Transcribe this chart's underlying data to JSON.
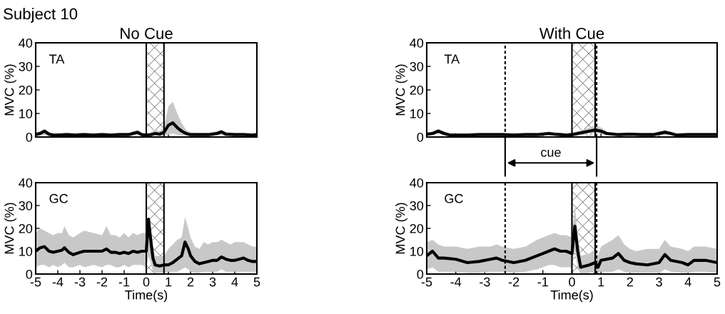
{
  "chart_data": [
    {
      "type": "line",
      "title": "No Cue",
      "ylabel": "MVC (%)",
      "annotations": [
        "TA",
        "Subject 10"
      ],
      "xlim": [
        -5,
        5
      ],
      "xticks": [
        -5,
        -4,
        -3,
        -2,
        -1,
        0,
        1,
        2,
        3,
        4,
        5
      ],
      "ylim": [
        0,
        40
      ],
      "yticks": [
        0,
        10,
        20,
        30,
        40
      ],
      "tick_labels": "y",
      "bands": [
        {
          "axis": "x",
          "from": 0,
          "to": 0.8
        }
      ],
      "series": [
        {
          "color": "#000000",
          "x": [
            -5,
            -4.8,
            -4.6,
            -4.4,
            -4.2,
            -4,
            -3.6,
            -3.2,
            -2.8,
            -2.4,
            -2,
            -1.6,
            -1.2,
            -0.8,
            -0.6,
            -0.4,
            -0.2,
            0,
            0.2,
            0.4,
            0.6,
            0.8,
            1,
            1.2,
            1.4,
            1.6,
            1.8,
            2,
            2.4,
            2.8,
            3.2,
            3.4,
            3.6,
            4,
            4.4,
            4.8,
            5
          ],
          "values": [
            1,
            1.5,
            2.5,
            1.2,
            0.8,
            0.8,
            1,
            0.8,
            1,
            0.8,
            1,
            0.8,
            1,
            1,
            1.5,
            2,
            1,
            0.8,
            1,
            1.5,
            1.2,
            2,
            5,
            6,
            4,
            2.5,
            1.5,
            1,
            1,
            1,
            1.5,
            2.2,
            1.2,
            1,
            1,
            0.8,
            1
          ],
          "lower": [
            0,
            0.5,
            1,
            0.3,
            0,
            0,
            0.2,
            0,
            0.2,
            0,
            0.2,
            0,
            0.2,
            0.2,
            0.6,
            1,
            0.2,
            0,
            0.2,
            0.5,
            0.3,
            0.8,
            1,
            1.5,
            1,
            0.5,
            0.5,
            0.2,
            0.2,
            0.2,
            0.5,
            1,
            0.3,
            0.2,
            0.2,
            0,
            0.2
          ],
          "upper": [
            2,
            2.5,
            3.5,
            2.2,
            1.6,
            1.6,
            1.8,
            1.6,
            1.8,
            1.6,
            1.8,
            1.6,
            1.8,
            1.8,
            2.4,
            3,
            1.8,
            1.6,
            2,
            3,
            2.5,
            4,
            13,
            15,
            10,
            6,
            3,
            2,
            1.8,
            1.8,
            2.5,
            3.2,
            2.2,
            1.8,
            1.8,
            1.6,
            1.8
          ]
        }
      ]
    },
    {
      "type": "line",
      "title": "With Cue",
      "ylabel": "MVC (%)",
      "annotations": [
        "TA",
        "cue"
      ],
      "xlim": [
        -5,
        5
      ],
      "xticks": [
        -5,
        -4,
        -3,
        -2,
        -1,
        0,
        1,
        2,
        3,
        4,
        5
      ],
      "ylim": [
        0,
        40
      ],
      "yticks": [
        0,
        10,
        20,
        30,
        40
      ],
      "tick_labels": "y",
      "bands": [
        {
          "axis": "x",
          "from": 0,
          "to": 0.8
        }
      ],
      "ref_lines": [
        {
          "axis": "x",
          "value": -2.3,
          "line_style": "dashed",
          "color": "#000000"
        },
        {
          "axis": "x",
          "value": 0.85,
          "line_style": "dashed",
          "color": "#000000"
        }
      ],
      "series": [
        {
          "color": "#000000",
          "x": [
            -5,
            -4.8,
            -4.6,
            -4.4,
            -4.2,
            -4,
            -3.6,
            -3.2,
            -2.8,
            -2.4,
            -2,
            -1.6,
            -1.2,
            -0.8,
            -0.6,
            -0.4,
            -0.2,
            0,
            0.2,
            0.4,
            0.6,
            0.8,
            1,
            1.2,
            1.6,
            2,
            2.4,
            2.8,
            3.2,
            3.4,
            3.6,
            4,
            4.4,
            4.8,
            5
          ],
          "values": [
            1.2,
            1.5,
            2.5,
            1.5,
            0.8,
            0.8,
            0.8,
            1,
            1,
            1,
            0.8,
            1,
            1,
            1.5,
            1.2,
            1,
            0.8,
            1,
            1.5,
            2,
            2.5,
            3,
            2.5,
            1.5,
            1,
            1.2,
            1,
            1,
            2,
            1.5,
            0.8,
            1,
            1,
            1,
            1
          ],
          "lower": [
            0.4,
            0.7,
            1.5,
            0.7,
            0,
            0,
            0,
            0.2,
            0.2,
            0.2,
            0,
            0.2,
            0.2,
            0.7,
            0.4,
            0.2,
            0,
            0.2,
            0.5,
            1,
            1.5,
            1.5,
            1.5,
            0.7,
            0.2,
            0.4,
            0.2,
            0.2,
            1,
            0.7,
            0,
            0.2,
            0.2,
            0.2,
            0.2
          ],
          "upper": [
            2,
            2.3,
            3.5,
            2.3,
            1.6,
            1.6,
            1.6,
            1.8,
            1.8,
            1.8,
            1.6,
            1.8,
            1.8,
            2.3,
            2,
            1.8,
            1.6,
            1.8,
            2.5,
            3,
            4,
            5,
            4,
            2.3,
            1.8,
            2,
            1.8,
            1.8,
            3,
            2.3,
            1.6,
            1.8,
            1.8,
            1.8,
            1.8
          ]
        }
      ]
    },
    {
      "type": "line",
      "xlabel": "Time(s)",
      "ylabel": "MVC (%)",
      "annotations": [
        "GC"
      ],
      "xlim": [
        -5,
        5
      ],
      "xticks": [
        -5,
        -4,
        -3,
        -2,
        -1,
        0,
        1,
        2,
        3,
        4,
        5
      ],
      "ylim": [
        0,
        40
      ],
      "yticks": [
        0,
        10,
        20,
        30,
        40
      ],
      "bands": [
        {
          "axis": "x",
          "from": 0,
          "to": 0.8
        }
      ],
      "series": [
        {
          "color": "#000000",
          "x": [
            -5,
            -4.8,
            -4.6,
            -4.4,
            -4.2,
            -4,
            -3.8,
            -3.7,
            -3.5,
            -3.3,
            -3,
            -2.8,
            -2.4,
            -2,
            -1.8,
            -1.6,
            -1.4,
            -1.2,
            -1,
            -0.8,
            -0.6,
            -0.4,
            -0.2,
            0,
            0.1,
            0.2,
            0.3,
            0.4,
            0.6,
            0.8,
            1,
            1.2,
            1.4,
            1.6,
            1.75,
            1.9,
            2,
            2.2,
            2.4,
            2.6,
            2.8,
            3,
            3.2,
            3.4,
            3.6,
            3.8,
            4,
            4.2,
            4.4,
            4.6,
            4.8,
            5
          ],
          "values": [
            10,
            11.5,
            12,
            10,
            9.5,
            10,
            10.5,
            11.5,
            9.5,
            8.5,
            9.5,
            10,
            10,
            10,
            11,
            9.5,
            9.5,
            9,
            9.5,
            9,
            10,
            9.5,
            10,
            10,
            24,
            15,
            7,
            4,
            3.5,
            4,
            4,
            5,
            6.5,
            8,
            14,
            11,
            8,
            5.5,
            4.5,
            5,
            5.5,
            6,
            6,
            7.5,
            6.5,
            6,
            6,
            6.5,
            7,
            6,
            5.5,
            5.5
          ],
          "lower": [
            3,
            4,
            4,
            3,
            4,
            3,
            4,
            5,
            3,
            3,
            4,
            3,
            4,
            3,
            4,
            4,
            3,
            3,
            4,
            3,
            4,
            4,
            4,
            3,
            8,
            5,
            1,
            0.5,
            0.5,
            0.5,
            1,
            1,
            1,
            2,
            3,
            2,
            1,
            0.5,
            0.5,
            1,
            1,
            1,
            1,
            2,
            1,
            1,
            1,
            1,
            1,
            1,
            1,
            1
          ],
          "upper": [
            18,
            20,
            19,
            18,
            17,
            18,
            18,
            21,
            17,
            16,
            18,
            19,
            18,
            17,
            21,
            17,
            17,
            16,
            18,
            16,
            18,
            17,
            18,
            18,
            25,
            20,
            12,
            8,
            8,
            8,
            11,
            13,
            15,
            16,
            25,
            20,
            16,
            12,
            11,
            14,
            13,
            14,
            14,
            15,
            14,
            13,
            14,
            14,
            14,
            13,
            12,
            12
          ]
        }
      ]
    },
    {
      "type": "line",
      "xlabel": "Time(s)",
      "ylabel": "MVC (%)",
      "annotations": [
        "GC"
      ],
      "xlim": [
        -5,
        5
      ],
      "xticks": [
        -5,
        -4,
        -3,
        -2,
        -1,
        0,
        1,
        2,
        3,
        4,
        5
      ],
      "ylim": [
        0,
        40
      ],
      "yticks": [
        0,
        10,
        20,
        30,
        40
      ],
      "bands": [
        {
          "axis": "x",
          "from": 0,
          "to": 0.8
        }
      ],
      "ref_lines": [
        {
          "axis": "x",
          "value": -2.3,
          "line_style": "dashed",
          "color": "#000000"
        },
        {
          "axis": "x",
          "value": 0.85,
          "line_style": "dashed",
          "color": "#000000"
        }
      ],
      "series": [
        {
          "color": "#000000",
          "x": [
            -5,
            -4.8,
            -4.6,
            -4.4,
            -4,
            -3.6,
            -3.2,
            -2.8,
            -2.6,
            -2.4,
            -2,
            -1.6,
            -1.2,
            -0.8,
            -0.6,
            -0.4,
            -0.2,
            0,
            0.1,
            0.2,
            0.3,
            0.6,
            0.8,
            0.9,
            1,
            1.4,
            1.6,
            1.8,
            2,
            2.2,
            2.6,
            3,
            3.2,
            3.4,
            3.8,
            4,
            4.2,
            4.6,
            5
          ],
          "values": [
            8,
            10,
            7,
            7,
            6.5,
            5,
            5.5,
            6.5,
            7,
            6,
            5,
            6,
            8,
            10,
            11,
            10,
            10,
            9,
            21,
            10,
            3,
            4,
            5,
            3,
            6,
            7,
            9,
            6,
            5,
            4.5,
            4,
            5,
            8.5,
            6,
            5,
            4,
            6,
            6,
            5
          ],
          "lower": [
            2,
            3,
            1,
            1,
            1,
            0.5,
            0.5,
            1,
            1,
            1,
            0.5,
            1,
            2,
            4,
            4,
            3,
            3,
            3,
            10,
            3,
            0,
            0.5,
            1,
            0,
            1,
            1,
            2,
            1,
            0.5,
            0.5,
            0.5,
            0.5,
            2,
            1,
            0.5,
            0.5,
            1,
            1,
            0.5
          ],
          "upper": [
            14,
            15,
            13,
            12,
            12,
            11,
            12,
            12,
            13,
            12,
            11,
            12,
            15,
            17,
            18,
            17,
            17,
            16,
            30,
            17,
            8,
            9,
            11,
            8,
            12,
            15,
            17,
            13,
            11,
            10,
            11,
            11,
            15,
            12,
            11,
            10,
            12,
            12,
            11
          ]
        }
      ]
    }
  ]
}
